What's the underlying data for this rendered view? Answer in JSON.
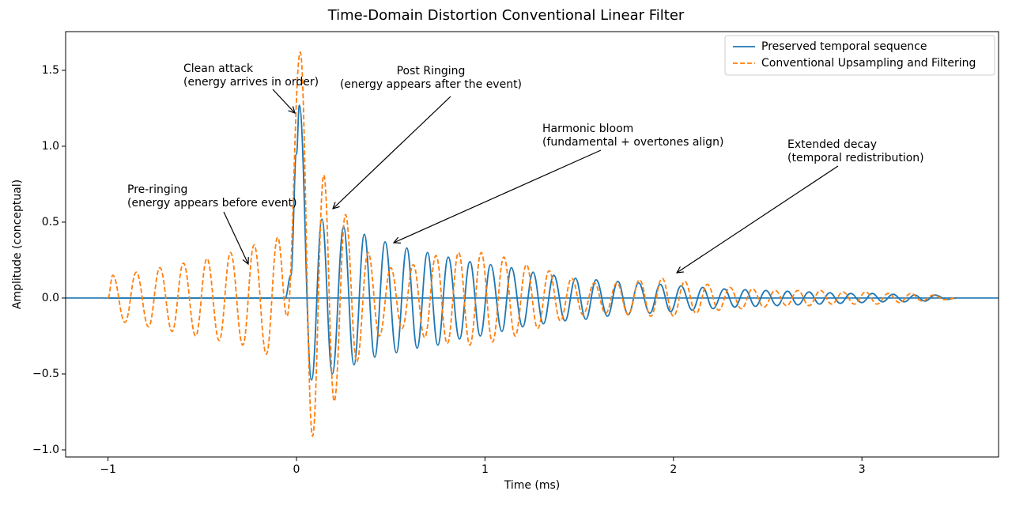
{
  "chart_data": {
    "type": "line",
    "title": "Time-Domain Distortion Conventional Linear Filter",
    "x_label": "Time (ms)",
    "y_label": "Amplitude (conceptual)",
    "xlim": [
      -1.225,
      3.725
    ],
    "ylim": [
      -1.047,
      1.755
    ],
    "xticks": [
      {
        "value": -1,
        "label": "−1"
      },
      0,
      1,
      2,
      3
    ],
    "yticks": [
      {
        "value": -1.0,
        "label": "−1.0"
      },
      {
        "value": -0.5,
        "label": "−0.5"
      },
      {
        "value": 0.0,
        "label": "0.0"
      },
      0.5,
      {
        "value": 1.0,
        "label": "1.0"
      },
      1.5
    ],
    "legend": "upper right",
    "hline": {
      "value": 0,
      "color": "#1f77b4"
    },
    "series": [
      {
        "name": "Preserved temporal sequence",
        "color": "#1f77b4",
        "style": "solid",
        "x": [
          -1.0,
          -0.06,
          -0.03,
          0.0,
          0.015,
          0.08,
          0.135,
          0.19,
          0.25,
          0.305,
          0.36,
          0.415,
          0.47,
          0.53,
          0.585,
          0.64,
          0.695,
          0.75,
          0.805,
          0.865,
          0.92,
          0.975,
          1.03,
          1.09,
          1.14,
          1.2,
          1.255,
          1.31,
          1.365,
          1.425,
          1.48,
          1.535,
          1.59,
          1.65,
          1.705,
          1.76,
          1.815,
          1.875,
          1.93,
          1.985,
          2.04,
          2.1,
          2.155,
          2.21,
          2.27,
          2.325,
          2.38,
          2.435,
          2.49,
          2.55,
          2.605,
          2.66,
          2.72,
          2.775,
          2.83,
          2.885,
          2.94,
          3.0,
          3.055,
          3.11,
          3.165,
          3.225,
          3.28,
          3.335,
          3.39,
          3.45,
          3.5
        ],
        "values": [
          0,
          0,
          0.15,
          0.95,
          1.27,
          -0.54,
          0.52,
          -0.5,
          0.47,
          -0.44,
          0.42,
          -0.39,
          0.37,
          -0.36,
          0.33,
          -0.33,
          0.3,
          -0.31,
          0.27,
          -0.27,
          0.24,
          -0.25,
          0.22,
          -0.22,
          0.2,
          -0.19,
          0.17,
          -0.17,
          0.15,
          -0.15,
          0.13,
          -0.14,
          0.12,
          -0.12,
          0.11,
          -0.11,
          0.1,
          -0.1,
          0.09,
          -0.09,
          0.08,
          -0.08,
          0.07,
          -0.07,
          0.06,
          -0.06,
          0.055,
          -0.055,
          0.05,
          -0.05,
          0.045,
          -0.045,
          0.04,
          -0.04,
          0.035,
          -0.035,
          0.03,
          -0.03,
          0.03,
          -0.025,
          0.025,
          -0.025,
          0.02,
          -0.02,
          0.02,
          -0.01,
          0
        ]
      },
      {
        "name": "Conventional Upsampling and Filtering",
        "color": "#ff7f0e",
        "style": "dashed",
        "x": [
          -1.0,
          -0.975,
          -0.91,
          -0.85,
          -0.785,
          -0.725,
          -0.66,
          -0.6,
          -0.535,
          -0.475,
          -0.41,
          -0.35,
          -0.285,
          -0.225,
          -0.16,
          -0.1,
          -0.05,
          0.02,
          0.085,
          0.145,
          0.2,
          0.26,
          0.32,
          0.38,
          0.44,
          0.5,
          0.56,
          0.62,
          0.68,
          0.74,
          0.8,
          0.86,
          0.92,
          0.98,
          1.04,
          1.1,
          1.16,
          1.22,
          1.28,
          1.34,
          1.4,
          1.46,
          1.52,
          1.58,
          1.64,
          1.7,
          1.76,
          1.82,
          1.88,
          1.94,
          2.0,
          2.06,
          2.12,
          2.18,
          2.24,
          2.3,
          2.36,
          2.42,
          2.48,
          2.54,
          2.6,
          2.66,
          2.72,
          2.78,
          2.84,
          2.9,
          2.96,
          3.02,
          3.08,
          3.14,
          3.2,
          3.26,
          3.32,
          3.38,
          3.44,
          3.5
        ],
        "values": [
          0,
          0.15,
          -0.16,
          0.17,
          -0.19,
          0.2,
          -0.22,
          0.23,
          -0.25,
          0.26,
          -0.28,
          0.3,
          -0.31,
          0.35,
          -0.37,
          0.4,
          -0.12,
          1.62,
          -0.91,
          0.81,
          -0.68,
          0.55,
          -0.42,
          0.3,
          -0.25,
          0.2,
          -0.2,
          0.22,
          -0.26,
          0.28,
          -0.3,
          0.3,
          -0.31,
          0.3,
          -0.29,
          0.27,
          -0.25,
          0.22,
          -0.2,
          0.18,
          -0.15,
          0.13,
          -0.11,
          0.1,
          -0.1,
          0.1,
          -0.11,
          0.12,
          -0.12,
          0.13,
          -0.12,
          0.11,
          -0.1,
          0.09,
          -0.08,
          0.07,
          -0.07,
          0.06,
          -0.06,
          0.05,
          -0.05,
          0.05,
          -0.05,
          0.05,
          -0.04,
          0.04,
          -0.04,
          0.04,
          -0.04,
          0.03,
          -0.03,
          0.03,
          -0.02,
          0.02,
          -0.01,
          0
        ]
      }
    ],
    "annotations": [
      {
        "title": "Clean attack",
        "note": "(energy arrives in order)"
      },
      {
        "title": "Post Ringing",
        "note": "(energy appears after the event)"
      },
      {
        "title": "Harmonic bloom",
        "note": "(fundamental + overtones align)"
      },
      {
        "title": "Extended decay",
        "note": "(temporal redistribution)"
      },
      {
        "title": "Pre-ringing",
        "note": "(energy appears before event)"
      }
    ]
  }
}
